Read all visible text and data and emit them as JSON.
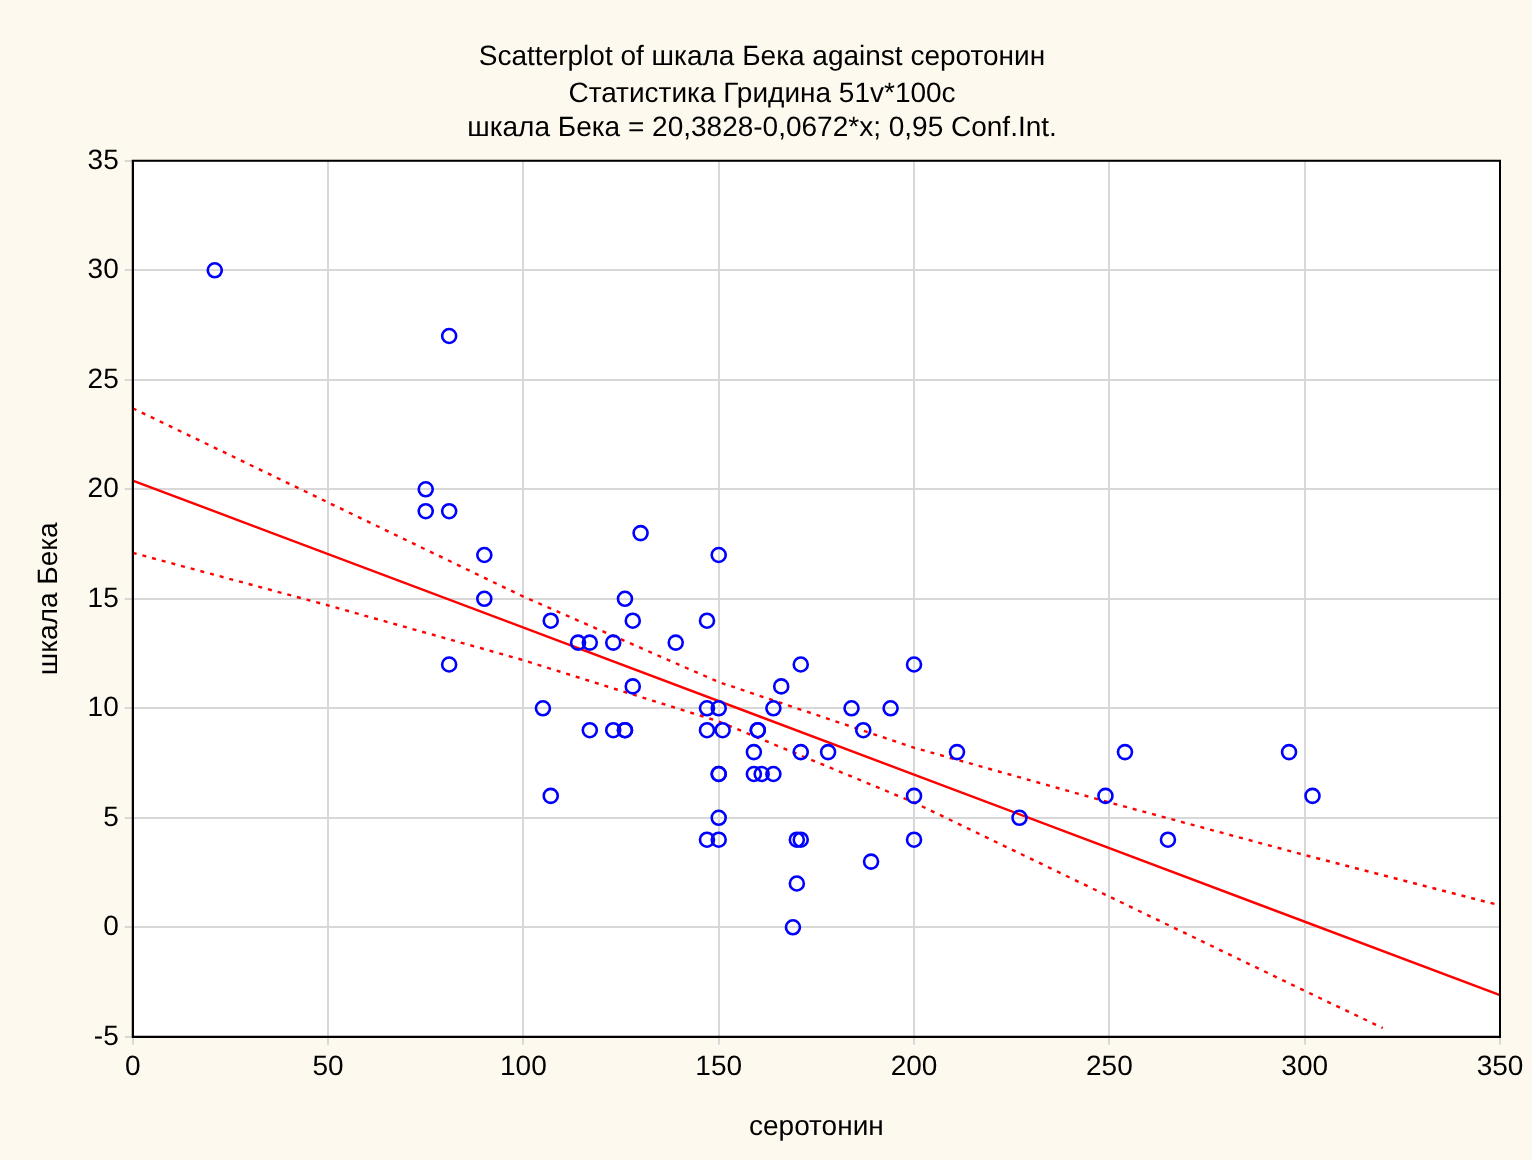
{
  "chart_data": {
    "type": "scatter",
    "title": "Scatterplot of шкала Бека against серотонин",
    "subtitle": "Статистика Гридина 51v*100c",
    "annotations": [
      "шкала Бека = 20,3828-0,0672*x; 0,95 Conf.Int."
    ],
    "xlabel": "серотонин",
    "ylabel": "шкала Бека",
    "xlim": [
      0,
      350
    ],
    "xticks": [
      0,
      50,
      100,
      150,
      200,
      250,
      300,
      350
    ],
    "ylim": [
      -5,
      35
    ],
    "yticks": [
      -5,
      0,
      5,
      10,
      15,
      20,
      25,
      30,
      35
    ],
    "grid": true,
    "legend": false,
    "marker": "circle",
    "series": [
      {
        "color": "#0000ff",
        "x": [
          21,
          81,
          75,
          75,
          81,
          90,
          90,
          81,
          107,
          105,
          107,
          114,
          117,
          117,
          123,
          123,
          126,
          126,
          128,
          128,
          130,
          150,
          147,
          139,
          171,
          200,
          166,
          147,
          150,
          164,
          184,
          194,
          126,
          147,
          151,
          160,
          160,
          187,
          159,
          171,
          178,
          211,
          200,
          150,
          150,
          159,
          161,
          164,
          150,
          227,
          147,
          150,
          170,
          171,
          200,
          189,
          170,
          169,
          249,
          254,
          265,
          296,
          302
        ],
        "values": [
          30,
          27,
          20,
          19,
          19,
          17,
          15,
          12,
          14,
          10,
          6,
          13,
          13,
          9,
          9,
          13,
          15,
          9,
          14,
          11,
          18,
          17,
          14,
          13,
          12,
          12,
          11,
          10,
          10,
          10,
          10,
          10,
          9,
          9,
          9,
          9,
          9,
          9,
          8,
          8,
          8,
          8,
          6,
          7,
          7,
          7,
          7,
          7,
          5,
          5,
          4,
          4,
          4,
          4,
          4,
          3,
          2,
          0,
          6,
          8,
          4,
          8,
          6
        ]
      },
      {
        "type": "line",
        "color": "#ff0000",
        "line_style": "solid",
        "marker": "none",
        "x": [
          0,
          350
        ],
        "values": [
          20.4,
          -3.1
        ]
      },
      {
        "type": "line",
        "color": "#ff0000",
        "line_style": "dotted",
        "marker": "none",
        "x": [
          0,
          50,
          100,
          150,
          200,
          250,
          300,
          350
        ],
        "values": [
          23.7,
          19.4,
          15.1,
          11.2,
          8.2,
          5.7,
          3.3,
          1.0
        ]
      },
      {
        "type": "line",
        "color": "#ff0000",
        "line_style": "dotted",
        "marker": "none",
        "x": [
          0,
          50,
          100,
          150,
          200,
          250,
          300,
          320
        ],
        "values": [
          17.1,
          14.7,
          12.2,
          9.4,
          5.7,
          1.4,
          -2.9,
          -4.6
        ]
      }
    ]
  }
}
